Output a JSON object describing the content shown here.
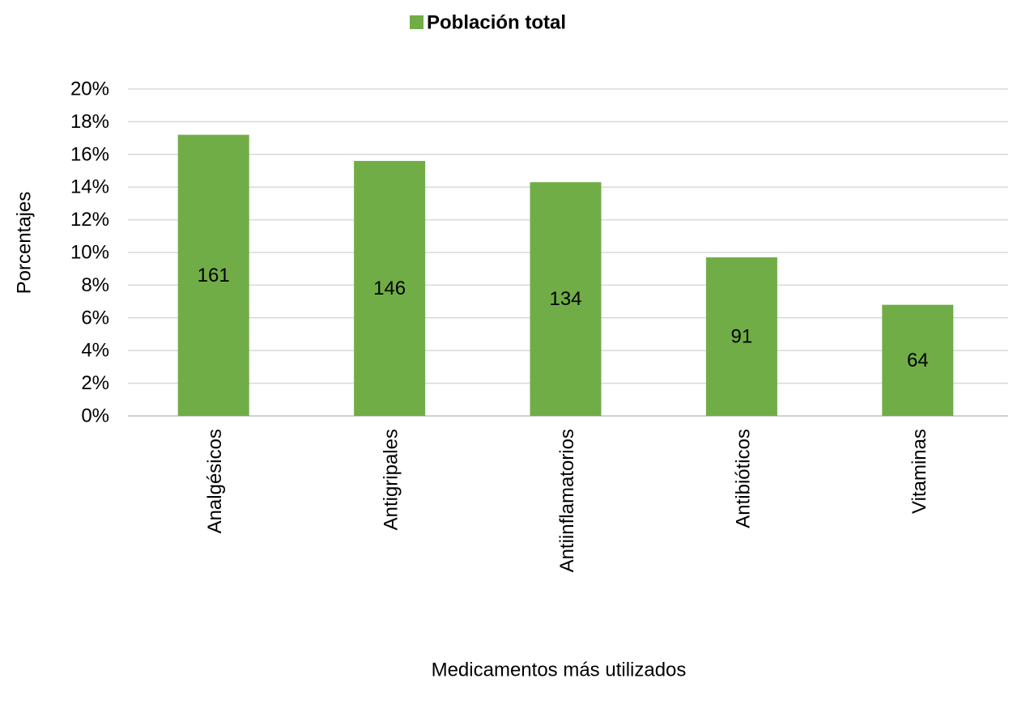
{
  "chart_data": {
    "type": "bar",
    "title": "",
    "legend": {
      "position": "top-center",
      "entries": [
        "Población total"
      ]
    },
    "xlabel": "Medicamentos más utilizados",
    "ylabel": "Porcentajes",
    "categories": [
      "Analgésicos",
      "Antigripales",
      "Antiinflamatorios",
      "Antibióticos",
      "Vitaminas"
    ],
    "series": [
      {
        "name": "Población total",
        "values": [
          17.2,
          15.6,
          14.3,
          9.7,
          6.8
        ],
        "data_labels": [
          "161",
          "146",
          "134",
          "91",
          "64"
        ],
        "color": "#70ad47"
      }
    ],
    "ylim": [
      0,
      20
    ],
    "yticks": [
      0,
      2,
      4,
      6,
      8,
      10,
      12,
      14,
      16,
      18,
      20
    ],
    "ytick_labels": [
      "0%",
      "2%",
      "4%",
      "6%",
      "8%",
      "10%",
      "12%",
      "14%",
      "16%",
      "18%",
      "20%"
    ],
    "grid": true,
    "gridline_color": "#d9d9d9"
  }
}
